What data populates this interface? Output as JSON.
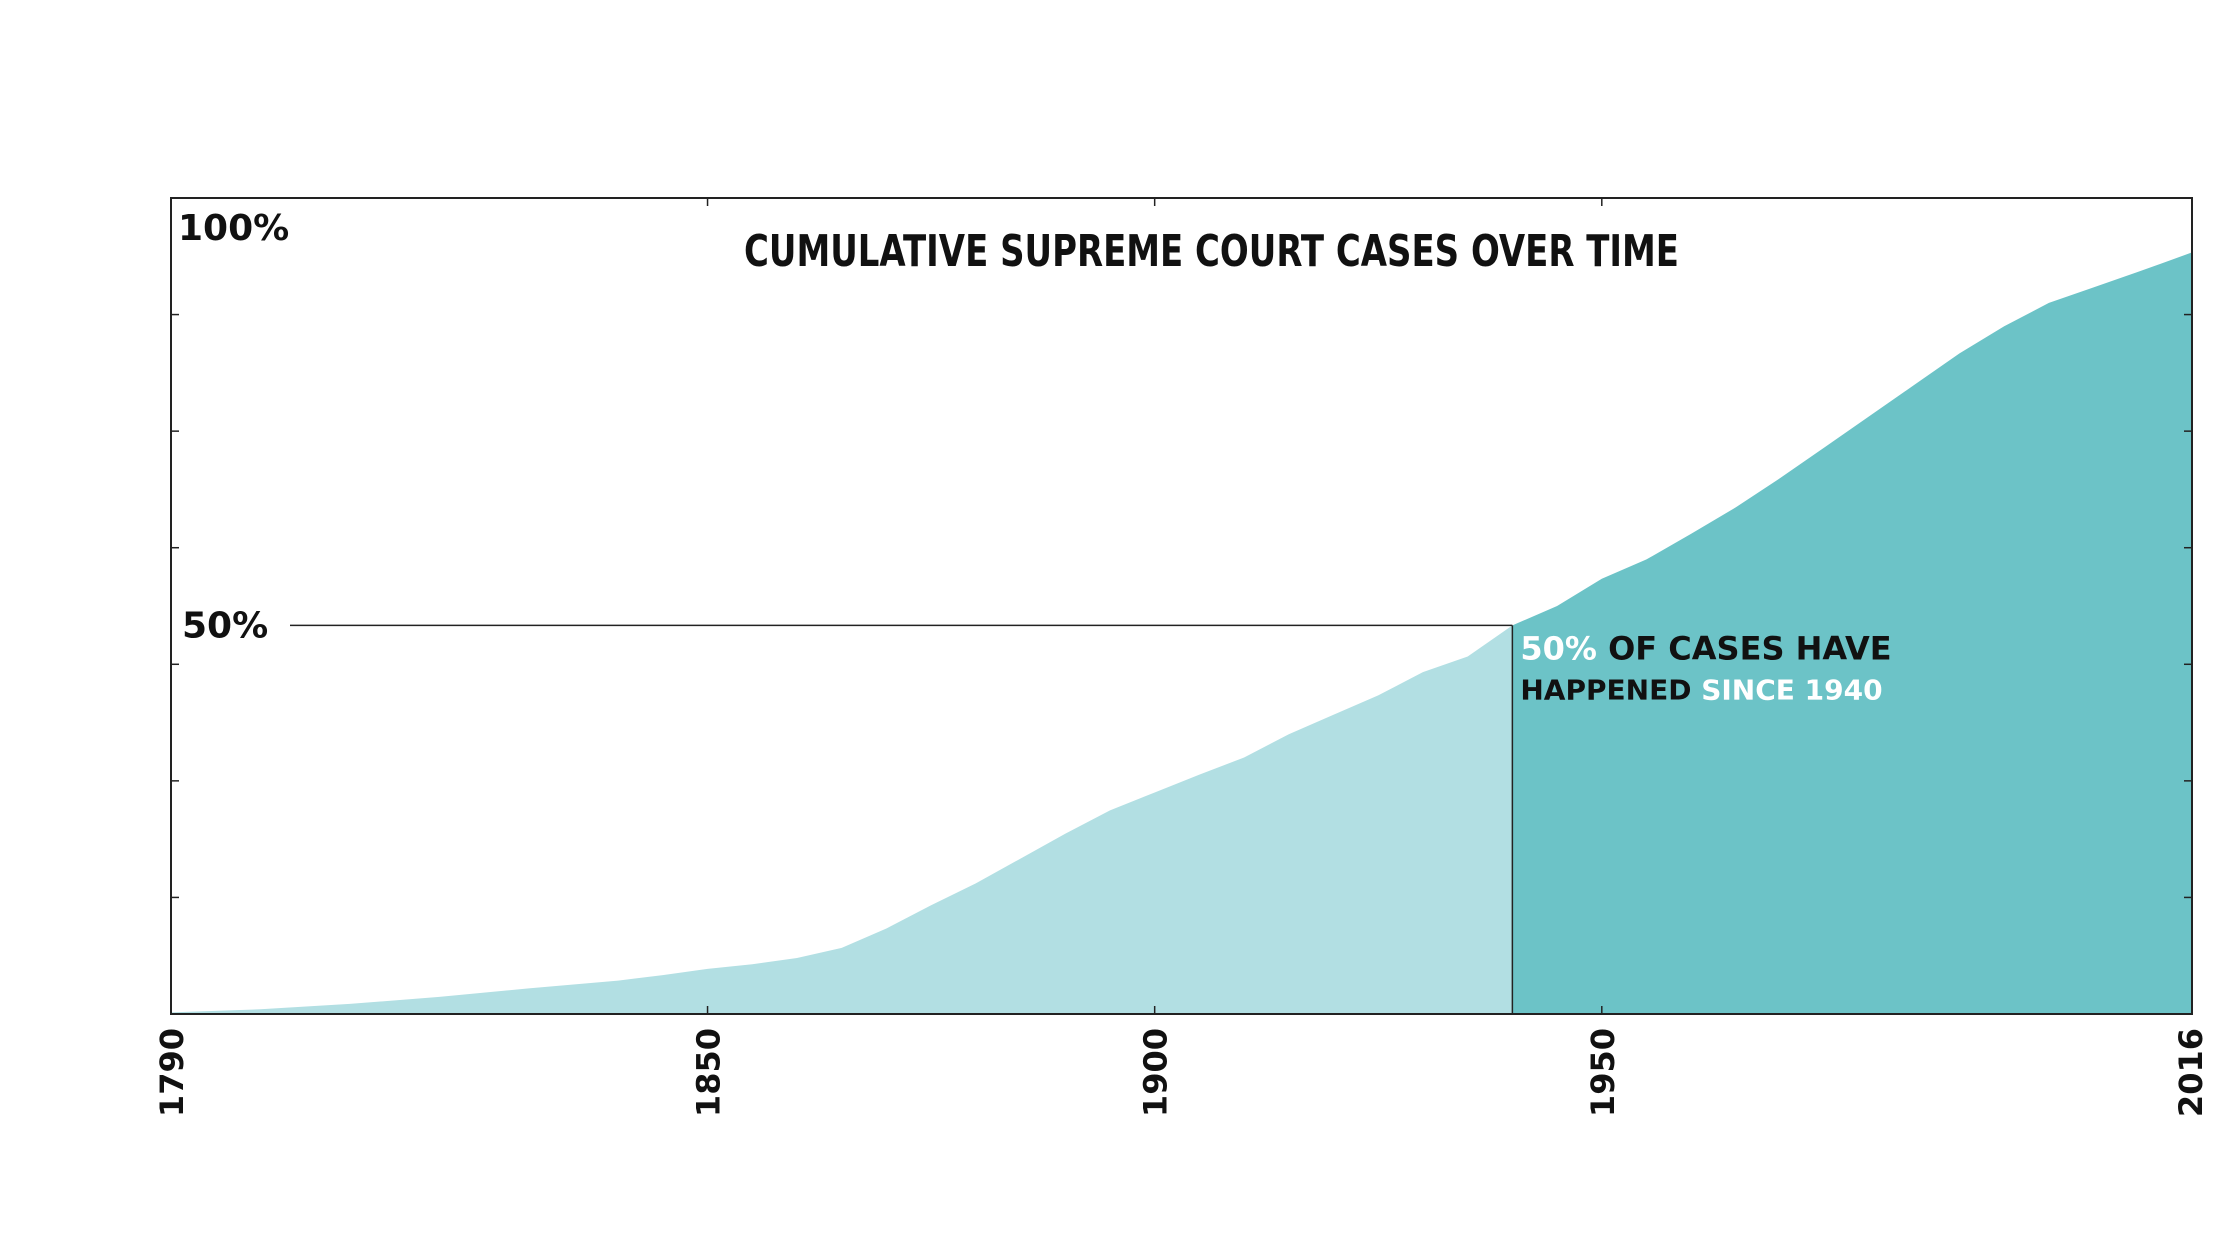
{
  "chart_data": {
    "type": "area",
    "title": "CUMULATIVE SUPREME COURT CASES OVER TIME",
    "x_ticks": [
      {
        "value": 1790,
        "label": "1790"
      },
      {
        "value": 1850,
        "label": "1850"
      },
      {
        "value": 1900,
        "label": "1900"
      },
      {
        "value": 1950,
        "label": "1950"
      },
      {
        "value": 2016,
        "label": "2016"
      }
    ],
    "y_ticks": [
      {
        "value": 0.5,
        "label": "50%"
      },
      {
        "value": 1.0,
        "label": "100%"
      }
    ],
    "xlim": [
      1790,
      2016
    ],
    "ylim": [
      0,
      1.05
    ],
    "grid": false,
    "highlight": {
      "year": 1940,
      "share": 0.5,
      "annotation": {
        "line1_highlight": "50%",
        "line1_rest": " OF CASES HAVE",
        "line2_rest": "HAPPENED ",
        "line2_highlight": "SINCE 1940"
      }
    },
    "series": [
      {
        "x": [
          1790,
          1800,
          1810,
          1820,
          1830,
          1835,
          1840,
          1845,
          1850,
          1855,
          1860,
          1865,
          1870,
          1875,
          1880,
          1885,
          1890,
          1895,
          1900,
          1905,
          1910,
          1915,
          1920,
          1925,
          1930,
          1935,
          1940,
          1945,
          1950,
          1955,
          1960,
          1965,
          1970,
          1975,
          1980,
          1985,
          1990,
          1995,
          2000,
          2005,
          2010,
          2016
        ],
        "y": [
          0.002,
          0.006,
          0.013,
          0.022,
          0.033,
          0.038,
          0.043,
          0.05,
          0.058,
          0.064,
          0.072,
          0.085,
          0.11,
          0.14,
          0.168,
          0.2,
          0.232,
          0.262,
          0.285,
          0.308,
          0.33,
          0.36,
          0.385,
          0.41,
          0.44,
          0.46,
          0.5,
          0.525,
          0.56,
          0.585,
          0.618,
          0.652,
          0.69,
          0.73,
          0.77,
          0.81,
          0.85,
          0.885,
          0.915,
          0.935,
          0.955,
          0.98
        ]
      }
    ],
    "colors": {
      "before": "#b2dfe3",
      "after": "#6cc3c7",
      "highlight_text": "#ffffff",
      "text": "#111111",
      "axis": "#222222"
    }
  }
}
